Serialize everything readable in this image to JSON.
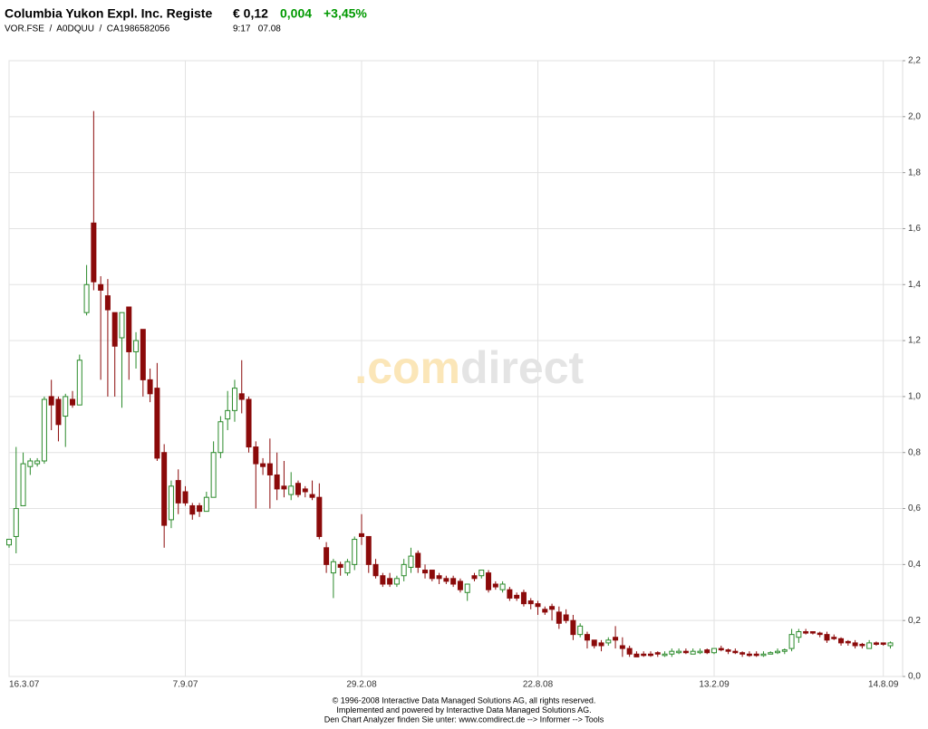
{
  "header": {
    "title": "Columbia Yukon Expl. Inc. Registe",
    "price": "€ 0,12",
    "change": "0,004",
    "change_pct": "+3,45%",
    "ids": "VOR.FSE  /  A0DQUU  /  CA1986582056",
    "time": "9:17   07.08"
  },
  "watermark": {
    "dot_com": ".com",
    "direct": "direct"
  },
  "chart_data": {
    "type": "candlestick",
    "categories": [
      "16.3.07",
      null,
      null,
      null,
      null,
      null,
      null,
      null,
      null,
      null,
      null,
      null,
      null,
      null,
      null,
      null,
      null,
      null,
      null,
      null,
      null,
      null,
      null,
      null,
      null,
      "7.9.07",
      null,
      null,
      null,
      null,
      null,
      null,
      null,
      null,
      null,
      null,
      null,
      null,
      null,
      null,
      null,
      null,
      null,
      null,
      null,
      null,
      null,
      null,
      null,
      null,
      "29.2.08",
      null,
      null,
      null,
      null,
      null,
      null,
      null,
      null,
      null,
      null,
      null,
      null,
      null,
      null,
      null,
      null,
      null,
      null,
      null,
      null,
      null,
      null,
      null,
      null,
      "22.8.08",
      null,
      null,
      null,
      null,
      null,
      null,
      null,
      null,
      null,
      null,
      null,
      null,
      null,
      null,
      null,
      null,
      null,
      null,
      null,
      null,
      null,
      null,
      null,
      null,
      "13.2.09",
      null,
      null,
      null,
      null,
      null,
      null,
      null,
      null,
      null,
      null,
      null,
      null,
      null,
      null,
      null,
      null,
      null,
      null,
      null,
      null,
      null,
      null,
      null,
      "14.8.09",
      null
    ],
    "open": [
      0.47,
      0.5,
      0.61,
      0.75,
      0.76,
      0.77,
      1.0,
      0.99,
      0.93,
      0.99,
      0.97,
      1.3,
      1.62,
      1.4,
      1.36,
      1.3,
      1.21,
      1.32,
      1.16,
      1.24,
      1.06,
      1.03,
      0.8,
      0.56,
      0.7,
      0.66,
      0.61,
      0.61,
      0.59,
      0.64,
      0.8,
      0.92,
      0.95,
      1.01,
      0.99,
      0.82,
      0.76,
      0.76,
      0.72,
      0.68,
      0.65,
      0.69,
      0.67,
      0.65,
      0.64,
      0.46,
      0.37,
      0.4,
      0.37,
      0.4,
      0.51,
      0.5,
      0.4,
      0.36,
      0.35,
      0.33,
      0.36,
      0.39,
      0.44,
      0.38,
      0.38,
      0.36,
      0.35,
      0.35,
      0.34,
      0.3,
      0.36,
      0.36,
      0.37,
      0.33,
      0.31,
      0.31,
      0.29,
      0.3,
      0.27,
      0.26,
      0.24,
      0.25,
      0.23,
      0.22,
      0.2,
      0.15,
      0.15,
      0.13,
      0.12,
      0.12,
      0.14,
      0.11,
      0.1,
      0.08,
      0.08,
      0.08,
      0.085,
      0.075,
      0.08,
      0.085,
      0.09,
      0.08,
      0.085,
      0.095,
      0.085,
      0.1,
      0.095,
      0.09,
      0.085,
      0.08,
      0.08,
      0.075,
      0.08,
      0.085,
      0.09,
      0.1,
      0.14,
      0.16,
      0.16,
      0.155,
      0.15,
      0.14,
      0.135,
      0.125,
      0.12,
      0.115,
      0.1,
      0.12,
      0.12,
      0.11
    ],
    "high": [
      0.49,
      0.82,
      0.8,
      0.78,
      0.78,
      1.0,
      1.06,
      1.0,
      1.01,
      1.02,
      1.15,
      1.47,
      2.02,
      1.43,
      1.42,
      1.3,
      1.3,
      1.32,
      1.23,
      1.24,
      1.1,
      1.12,
      0.83,
      0.7,
      0.74,
      0.68,
      0.62,
      0.62,
      0.66,
      0.84,
      0.93,
      1.02,
      1.06,
      1.13,
      1.0,
      0.84,
      0.78,
      0.85,
      0.8,
      0.77,
      0.73,
      0.7,
      0.68,
      0.7,
      0.69,
      0.48,
      0.42,
      0.41,
      0.42,
      0.5,
      0.58,
      0.5,
      0.42,
      0.37,
      0.37,
      0.36,
      0.42,
      0.46,
      0.45,
      0.4,
      0.38,
      0.37,
      0.36,
      0.36,
      0.35,
      0.33,
      0.37,
      0.38,
      0.38,
      0.34,
      0.34,
      0.32,
      0.3,
      0.31,
      0.28,
      0.27,
      0.25,
      0.26,
      0.25,
      0.24,
      0.22,
      0.19,
      0.16,
      0.13,
      0.13,
      0.14,
      0.18,
      0.14,
      0.11,
      0.09,
      0.09,
      0.09,
      0.09,
      0.09,
      0.1,
      0.1,
      0.1,
      0.1,
      0.1,
      0.1,
      0.1,
      0.11,
      0.1,
      0.1,
      0.09,
      0.09,
      0.09,
      0.09,
      0.09,
      0.1,
      0.1,
      0.17,
      0.17,
      0.17,
      0.16,
      0.16,
      0.16,
      0.15,
      0.14,
      0.13,
      0.13,
      0.12,
      0.13,
      0.125,
      0.12,
      0.125
    ],
    "low": [
      0.46,
      0.44,
      0.61,
      0.72,
      0.75,
      0.76,
      0.88,
      0.84,
      0.82,
      0.96,
      0.97,
      1.29,
      1.38,
      1.06,
      1.0,
      1.0,
      0.96,
      1.06,
      1.1,
      1.0,
      0.98,
      0.77,
      0.46,
      0.53,
      0.58,
      0.61,
      0.56,
      0.57,
      0.59,
      0.64,
      0.78,
      0.88,
      0.91,
      0.94,
      0.8,
      0.6,
      0.72,
      0.6,
      0.63,
      0.64,
      0.63,
      0.64,
      0.64,
      0.63,
      0.49,
      0.37,
      0.28,
      0.36,
      0.36,
      0.38,
      0.47,
      0.37,
      0.35,
      0.32,
      0.32,
      0.32,
      0.34,
      0.37,
      0.37,
      0.35,
      0.34,
      0.33,
      0.33,
      0.32,
      0.3,
      0.27,
      0.34,
      0.35,
      0.3,
      0.31,
      0.3,
      0.27,
      0.27,
      0.25,
      0.24,
      0.22,
      0.22,
      0.2,
      0.17,
      0.19,
      0.13,
      0.14,
      0.1,
      0.1,
      0.09,
      0.11,
      0.1,
      0.07,
      0.07,
      0.07,
      0.07,
      0.07,
      0.07,
      0.07,
      0.07,
      0.08,
      0.08,
      0.08,
      0.08,
      0.08,
      0.08,
      0.09,
      0.08,
      0.08,
      0.07,
      0.07,
      0.07,
      0.07,
      0.08,
      0.08,
      0.08,
      0.09,
      0.12,
      0.15,
      0.15,
      0.14,
      0.12,
      0.13,
      0.11,
      0.11,
      0.1,
      0.1,
      0.1,
      0.11,
      0.11,
      0.1
    ],
    "close": [
      0.49,
      0.6,
      0.76,
      0.77,
      0.77,
      0.99,
      0.97,
      0.9,
      1.0,
      0.97,
      1.13,
      1.4,
      1.41,
      1.38,
      1.31,
      1.18,
      1.3,
      1.16,
      1.2,
      1.06,
      1.01,
      0.78,
      0.54,
      0.68,
      0.62,
      0.62,
      0.58,
      0.59,
      0.64,
      0.8,
      0.91,
      0.95,
      1.03,
      0.99,
      0.82,
      0.76,
      0.75,
      0.72,
      0.67,
      0.67,
      0.68,
      0.65,
      0.66,
      0.64,
      0.5,
      0.4,
      0.41,
      0.39,
      0.41,
      0.49,
      0.5,
      0.4,
      0.36,
      0.33,
      0.33,
      0.35,
      0.4,
      0.43,
      0.39,
      0.37,
      0.35,
      0.35,
      0.34,
      0.33,
      0.31,
      0.33,
      0.35,
      0.38,
      0.31,
      0.32,
      0.33,
      0.28,
      0.28,
      0.26,
      0.26,
      0.25,
      0.23,
      0.24,
      0.19,
      0.2,
      0.15,
      0.18,
      0.13,
      0.11,
      0.11,
      0.13,
      0.13,
      0.1,
      0.08,
      0.07,
      0.075,
      0.075,
      0.08,
      0.08,
      0.09,
      0.09,
      0.085,
      0.09,
      0.09,
      0.085,
      0.1,
      0.095,
      0.09,
      0.085,
      0.08,
      0.075,
      0.075,
      0.08,
      0.085,
      0.09,
      0.095,
      0.15,
      0.16,
      0.155,
      0.155,
      0.15,
      0.13,
      0.135,
      0.12,
      0.12,
      0.11,
      0.11,
      0.12,
      0.115,
      0.115,
      0.12
    ],
    "up_color": "#2a8a2a",
    "down_color": "#8b0a0a",
    "ylim": [
      0,
      2.2
    ],
    "yticks": [
      {
        "value": 0,
        "label": "0,0"
      },
      {
        "value": 0.2,
        "label": "0,2"
      },
      {
        "value": 0.4,
        "label": "0,4"
      },
      {
        "value": 0.6,
        "label": "0,6"
      },
      {
        "value": 0.8,
        "label": "0,8"
      },
      {
        "value": 1.0,
        "label": "1,0"
      },
      {
        "value": 1.2,
        "label": "1,2"
      },
      {
        "value": 1.4,
        "label": "1,4"
      },
      {
        "value": 1.6,
        "label": "1,6"
      },
      {
        "value": 1.8,
        "label": "1,8"
      },
      {
        "value": 2.0,
        "label": "2,0"
      },
      {
        "value": 2.2,
        "label": "2,2"
      }
    ],
    "grid": true
  },
  "footer": [
    "© 1996-2008 Interactive Data Managed Solutions AG, all rights reserved.",
    "Implemented and powered by  Interactive Data Managed Solutions AG.",
    "Den Chart Analyzer finden Sie unter: www.comdirect.de --> Informer --> Tools"
  ]
}
